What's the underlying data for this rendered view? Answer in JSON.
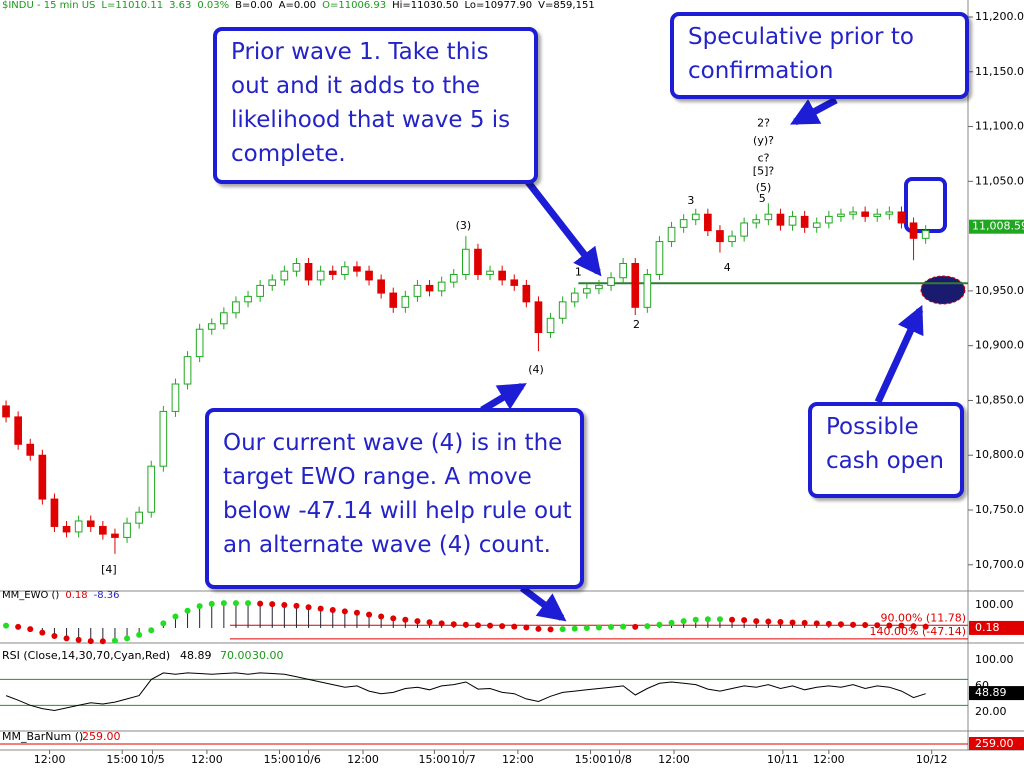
{
  "header": {
    "symbol": "$INDU - 15 min US",
    "last": "L=11010.11",
    "change": "3.63",
    "pct": "0.03%",
    "bid": "B=0.00",
    "ask": "A=0.00",
    "open": "O=11006.93",
    "high": "Hi=11030.50",
    "low": "Lo=10977.90",
    "volume": "V=859,151"
  },
  "chart_data": {
    "type": "candlestick",
    "xlim": [
      0,
      80
    ],
    "xticks": [
      {
        "value": 4.1,
        "label": "12:00"
      },
      {
        "value": 10.1,
        "label": "15:00"
      },
      {
        "value": 12.6,
        "label": "10/5"
      },
      {
        "value": 17.1,
        "label": "12:00"
      },
      {
        "value": 23.1,
        "label": "15:00"
      },
      {
        "value": 25.5,
        "label": "10/6"
      },
      {
        "value": 30,
        "label": "12:00"
      },
      {
        "value": 35.9,
        "label": "15:00"
      },
      {
        "value": 38.3,
        "label": "10/7"
      },
      {
        "value": 42.8,
        "label": "12:00"
      },
      {
        "value": 48.8,
        "label": "15:00"
      },
      {
        "value": 51.2,
        "label": "10/8"
      },
      {
        "value": 55.7,
        "label": "12:00"
      },
      {
        "value": 64.7,
        "label": "10/11"
      },
      {
        "value": 68.5,
        "label": "12:00"
      },
      {
        "value": 77,
        "label": "10/12"
      }
    ],
    "ylim": [
      10677,
      11215.5
    ],
    "yticks": [
      {
        "value": 11200,
        "label": "11,200.00"
      },
      {
        "value": 11150,
        "label": "11,150.00"
      },
      {
        "value": 11100,
        "label": "11,100.00"
      },
      {
        "value": 11050,
        "label": "11,050.00"
      },
      {
        "value": 10950,
        "label": "10,950.00"
      },
      {
        "value": 10900,
        "label": "10,900.00"
      },
      {
        "value": 10850,
        "label": "10,850.00"
      },
      {
        "value": 10800,
        "label": "10,800.00"
      },
      {
        "value": 10750,
        "label": "10,750.00"
      },
      {
        "value": 10700,
        "label": "10,700.00"
      }
    ],
    "up_color": "#1fa81f",
    "down_color": "#e00000",
    "open": [
      10845,
      10835,
      10810,
      10800,
      10760,
      10735,
      10730,
      10740,
      10735,
      10728,
      10725,
      10738,
      10748,
      10790,
      10840,
      10865,
      10890,
      10915,
      10920,
      10930,
      10940,
      10945,
      10955,
      10960,
      10968,
      10975,
      10960,
      10968,
      10965,
      10972,
      10968,
      10960,
      10948,
      10935,
      10945,
      10955,
      10950,
      10958,
      10965,
      10988,
      10965,
      10968,
      10960,
      10955,
      10940,
      10912,
      10925,
      10940,
      10948,
      10952,
      10955,
      10962,
      10975,
      10935,
      10965,
      10995,
      11008,
      11015,
      11020,
      11005,
      10995,
      11000,
      11012,
      11015,
      11020,
      11010,
      11018,
      11008,
      11012,
      11018,
      11020,
      11022,
      11018,
      11020,
      11022,
      11012,
      10998
    ],
    "high": [
      10850,
      10840,
      10815,
      10805,
      10765,
      10740,
      10745,
      10745,
      10740,
      10733,
      10743,
      10753,
      10795,
      10845,
      10870,
      10895,
      10920,
      10925,
      10935,
      10945,
      10950,
      10960,
      10965,
      10973,
      10980,
      10980,
      10973,
      10973,
      10977,
      10977,
      10973,
      10965,
      10953,
      10950,
      10960,
      10960,
      10963,
      10970,
      11000,
      10993,
      10973,
      10973,
      10965,
      10960,
      10945,
      10930,
      10945,
      10953,
      10957,
      10960,
      10967,
      10980,
      10980,
      10970,
      11000,
      11013,
      11020,
      11025,
      11025,
      11010,
      11005,
      11017,
      11020,
      11030,
      11025,
      11023,
      11023,
      11017,
      11023,
      11025,
      11027,
      11027,
      11025,
      11027,
      11027,
      11017,
      11010
    ],
    "low": [
      10830,
      10805,
      10795,
      10755,
      10730,
      10725,
      10725,
      10730,
      10723,
      10710,
      10720,
      10733,
      10743,
      10785,
      10835,
      10860,
      10885,
      10910,
      10915,
      10925,
      10935,
      10940,
      10950,
      10955,
      10963,
      10955,
      10955,
      10960,
      10960,
      10963,
      10955,
      10943,
      10930,
      10930,
      10940,
      10945,
      10945,
      10953,
      10960,
      10960,
      10960,
      10955,
      10950,
      10935,
      10895,
      10907,
      10920,
      10935,
      10943,
      10947,
      10950,
      10957,
      10928,
      10930,
      10960,
      10990,
      11003,
      11010,
      11000,
      10985,
      10990,
      10995,
      11007,
      11010,
      11005,
      11005,
      11003,
      11003,
      11007,
      11013,
      11015,
      11013,
      11013,
      11015,
      11007,
      10978,
      10993
    ],
    "close": [
      10835,
      10810,
      10800,
      10760,
      10735,
      10730,
      10740,
      10735,
      10728,
      10725,
      10738,
      10748,
      10790,
      10840,
      10865,
      10890,
      10915,
      10920,
      10930,
      10940,
      10945,
      10955,
      10960,
      10968,
      10975,
      10960,
      10968,
      10965,
      10972,
      10968,
      10960,
      10948,
      10935,
      10945,
      10955,
      10950,
      10958,
      10965,
      10988,
      10965,
      10968,
      10960,
      10955,
      10940,
      10912,
      10925,
      10940,
      10948,
      10952,
      10955,
      10962,
      10975,
      10935,
      10965,
      10995,
      11008,
      11015,
      11020,
      11005,
      10995,
      11000,
      11012,
      11015,
      11020,
      11010,
      11018,
      11008,
      11012,
      11018,
      11020,
      11022,
      11018,
      11020,
      11022,
      11012,
      10998,
      11005
    ],
    "last_price": {
      "value": 11008.59,
      "label": "11,008.59"
    },
    "level_line": {
      "value": 10957,
      "start": 47.8,
      "color": "#2e7d32"
    },
    "wave_labels": [
      {
        "text": "[4]",
        "x": 9.0,
        "y": 10695.4
      },
      {
        "text": "(3)",
        "x": 38.3,
        "y": 11009
      },
      {
        "text": "(4)",
        "x": 44.3,
        "y": 10878
      },
      {
        "text": "1",
        "x": 47.8,
        "y": 10967
      },
      {
        "text": "2",
        "x": 52.6,
        "y": 10919
      },
      {
        "text": "3",
        "x": 57.1,
        "y": 11032
      },
      {
        "text": "4",
        "x": 60.1,
        "y": 10971
      },
      {
        "text": "5",
        "x": 63.0,
        "y": 11034
      },
      {
        "text": "(5)",
        "x": 63.1,
        "y": 11044
      },
      {
        "text": "[5]?",
        "x": 63.1,
        "y": 11059
      },
      {
        "text": "c?",
        "x": 63.1,
        "y": 11071
      },
      {
        "text": "(y)?",
        "x": 63.1,
        "y": 11087
      },
      {
        "text": "2?",
        "x": 63.1,
        "y": 11103
      }
    ]
  },
  "ewo": {
    "label": "MM_EWO ()",
    "second": "-8.36",
    "ylim": [
      -61,
      156.5
    ],
    "yticks": [
      {
        "value": 100,
        "label": "100.00"
      }
    ],
    "levels": [
      {
        "value": 11.78,
        "label": "90.00% (11.78)"
      },
      {
        "value": -47.14,
        "label": "140.00% (-47.14)"
      }
    ],
    "current": {
      "value": 0.18,
      "label": "0.18"
    },
    "values": [
      10,
      5,
      -5,
      -20,
      -35,
      -45,
      -52,
      -57,
      -58,
      -55,
      -45,
      -30,
      -10,
      20,
      50,
      75,
      95,
      105,
      108,
      108,
      108,
      106,
      104,
      100,
      96,
      90,
      84,
      78,
      72,
      66,
      58,
      50,
      42,
      36,
      30,
      25,
      20,
      16,
      14,
      12,
      10,
      8,
      6,
      2,
      -4,
      -6,
      -5,
      -3,
      0,
      2,
      4,
      6,
      5,
      8,
      14,
      22,
      30,
      36,
      38,
      38,
      36,
      34,
      30,
      28,
      26,
      24,
      22,
      20,
      18,
      16,
      14,
      13,
      12,
      11,
      10,
      8,
      6
    ]
  },
  "rsi": {
    "label": "RSI (Close,14,30,70,Cyan,Red)",
    "ylim": [
      -8,
      123
    ],
    "yticks": [
      {
        "value": 100,
        "label": "100.00"
      },
      60,
      {
        "value": 20,
        "label": "20.00"
      }
    ],
    "levels": [
      {
        "value": 70,
        "label": "70.00"
      },
      {
        "value": 30,
        "label": "30.00"
      }
    ],
    "current": {
      "value": 48.89,
      "label": "48.89"
    },
    "values": [
      45,
      38,
      30,
      25,
      22,
      26,
      30,
      34,
      32,
      35,
      40,
      45,
      70,
      80,
      78,
      80,
      79,
      78,
      79,
      80,
      78,
      80,
      79,
      78,
      74,
      70,
      66,
      62,
      58,
      60,
      52,
      48,
      50,
      56,
      58,
      54,
      60,
      62,
      66,
      55,
      56,
      50,
      48,
      40,
      36,
      44,
      50,
      52,
      54,
      56,
      58,
      60,
      46,
      56,
      64,
      66,
      64,
      62,
      55,
      52,
      56,
      60,
      58,
      62,
      56,
      60,
      54,
      58,
      60,
      58,
      62,
      56,
      60,
      58,
      52,
      42,
      48
    ]
  },
  "barnum": {
    "label": "MM_BarNum ()",
    "current": {
      "value": 259,
      "label": "259.00"
    }
  },
  "annotations": [
    {
      "lines": [
        "Prior wave 1.  Take this",
        "out and it adds to the",
        "likelihood that wave 5 is",
        "complete."
      ]
    },
    {
      "lines": [
        "Speculative prior to",
        "confirmation"
      ]
    },
    {
      "lines": [
        "Possible",
        "cash open"
      ]
    },
    {
      "lines": [
        "Our current wave (4) is in the",
        "target EWO range.  A move",
        "below -47.14 will help rule out",
        "an alternate wave (4) count."
      ]
    }
  ]
}
